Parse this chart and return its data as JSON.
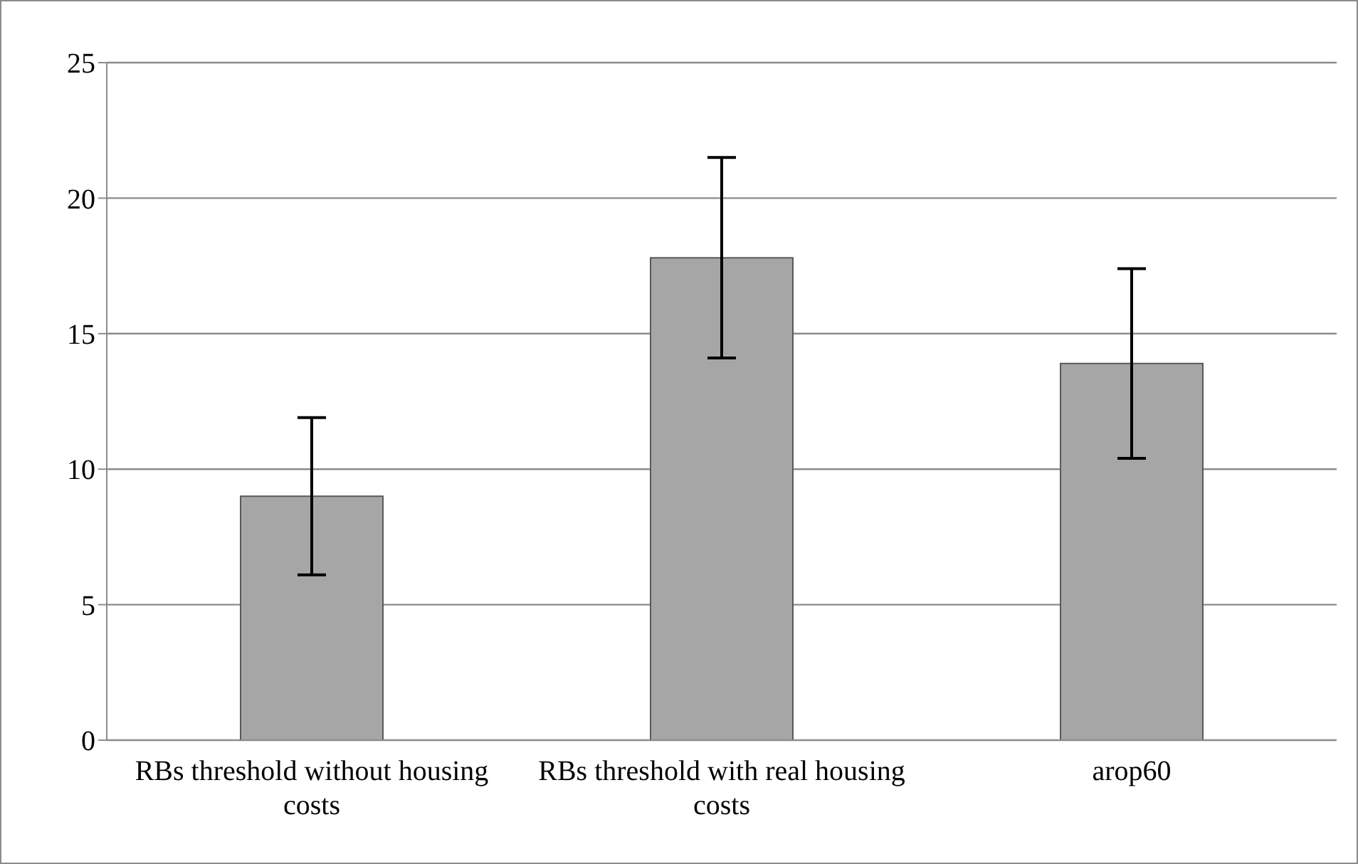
{
  "chart_data": {
    "type": "bar",
    "categories": [
      "RBs threshold without housing costs",
      "RBs threshold with real housing costs",
      "arop60"
    ],
    "values": [
      9.0,
      17.8,
      13.9
    ],
    "errors": [
      2.9,
      3.7,
      3.5
    ],
    "color": "#a6a6a6",
    "ylim": [
      0,
      25
    ],
    "yticks": [
      0,
      5,
      10,
      15,
      20,
      25
    ],
    "grid": "y"
  }
}
